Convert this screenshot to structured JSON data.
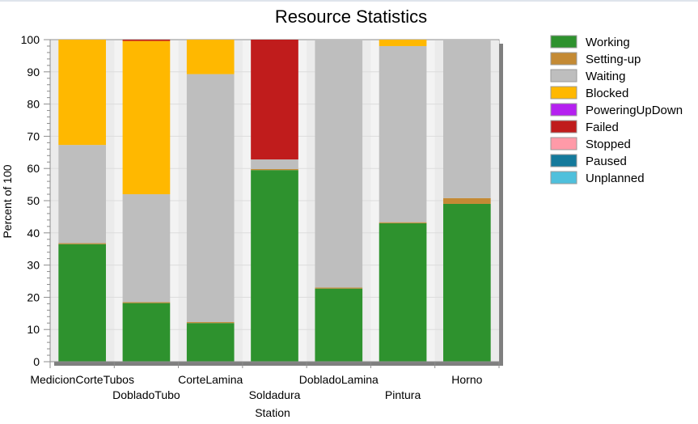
{
  "chart_data": {
    "type": "bar",
    "stacked": true,
    "title": "Resource Statistics",
    "xlabel": "Station",
    "ylabel": "Percent of 100",
    "ylim": [
      0,
      100
    ],
    "yticks": [
      0,
      10,
      20,
      30,
      40,
      50,
      60,
      70,
      80,
      90,
      100
    ],
    "grid": true,
    "legend_position": "right",
    "categories": [
      "MedicionCorteTubos",
      "DobladoTubo",
      "CorteLamina",
      "Soldadura",
      "DobladoLamina",
      "Pintura",
      "Horno"
    ],
    "series": [
      {
        "name": "Working",
        "color": "#2e922e",
        "values": [
          36.5,
          18.2,
          12.0,
          59.5,
          22.7,
          43.0,
          49.0
        ]
      },
      {
        "name": "Setting-up",
        "color": "#c48a34",
        "values": [
          0.3,
          0.3,
          0.3,
          0.3,
          0.3,
          0.3,
          1.8
        ]
      },
      {
        "name": "Waiting",
        "color": "#bebebe",
        "values": [
          30.5,
          33.5,
          77.0,
          3.0,
          77.0,
          54.7,
          49.2
        ]
      },
      {
        "name": "Blocked",
        "color": "#ffb800",
        "values": [
          32.7,
          47.6,
          10.7,
          0,
          0,
          2.0,
          0
        ]
      },
      {
        "name": "PoweringUpDown",
        "color": "#b521f0",
        "values": [
          0,
          0,
          0,
          0,
          0,
          0,
          0
        ]
      },
      {
        "name": "Failed",
        "color": "#c01c1c",
        "values": [
          0,
          0.4,
          0,
          37.2,
          0,
          0,
          0
        ]
      },
      {
        "name": "Stopped",
        "color": "#ff9aa8",
        "values": [
          0,
          0,
          0,
          0,
          0,
          0,
          0
        ]
      },
      {
        "name": "Paused",
        "color": "#147a9c",
        "values": [
          0,
          0,
          0,
          0,
          0,
          0,
          0
        ]
      },
      {
        "name": "Unplanned",
        "color": "#4fc0dc",
        "values": [
          0,
          0,
          0,
          0,
          0,
          0,
          0
        ]
      }
    ]
  }
}
